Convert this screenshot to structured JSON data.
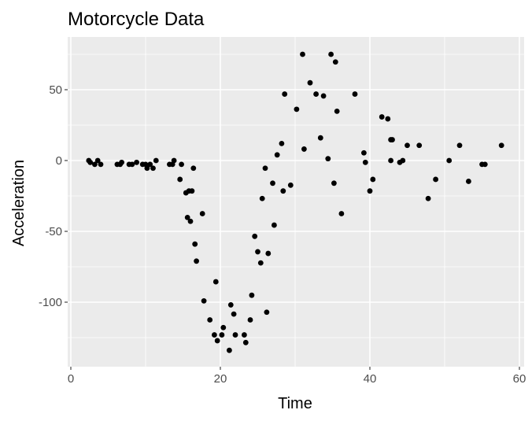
{
  "chart_data": {
    "type": "scatter",
    "title": "Motorcycle Data",
    "xlabel": "Time",
    "ylabel": "Acceleration",
    "xlim": [
      0,
      60
    ],
    "ylim": [
      -135,
      75
    ],
    "x_ticks": [
      0,
      20,
      40,
      60
    ],
    "y_ticks": [
      -100,
      -50,
      0,
      50
    ],
    "x_tick_labels": [
      "0",
      "20",
      "40",
      "60"
    ],
    "y_tick_labels": [
      "-100",
      "-50",
      "0",
      "50"
    ],
    "grid": true,
    "background": "#EBEBEB",
    "point_color": "#000000",
    "points": [
      {
        "x": 2.4,
        "y": 0.0
      },
      {
        "x": 2.6,
        "y": -1.3
      },
      {
        "x": 3.2,
        "y": -2.7
      },
      {
        "x": 3.6,
        "y": 0.0
      },
      {
        "x": 4.0,
        "y": -2.7
      },
      {
        "x": 6.2,
        "y": -2.7
      },
      {
        "x": 6.6,
        "y": -2.7
      },
      {
        "x": 6.8,
        "y": -1.3
      },
      {
        "x": 7.8,
        "y": -2.7
      },
      {
        "x": 8.2,
        "y": -2.7
      },
      {
        "x": 8.8,
        "y": -1.3
      },
      {
        "x": 9.6,
        "y": -2.7
      },
      {
        "x": 10.0,
        "y": -2.7
      },
      {
        "x": 10.2,
        "y": -5.4
      },
      {
        "x": 10.6,
        "y": -2.7
      },
      {
        "x": 11.0,
        "y": -5.4
      },
      {
        "x": 11.4,
        "y": 0.0
      },
      {
        "x": 13.2,
        "y": -2.7
      },
      {
        "x": 13.6,
        "y": -2.7
      },
      {
        "x": 13.8,
        "y": 0.0
      },
      {
        "x": 14.6,
        "y": -13.3
      },
      {
        "x": 14.8,
        "y": -2.7
      },
      {
        "x": 15.4,
        "y": -22.8
      },
      {
        "x": 15.6,
        "y": -40.2
      },
      {
        "x": 15.8,
        "y": -21.5
      },
      {
        "x": 16.0,
        "y": -42.9
      },
      {
        "x": 16.2,
        "y": -21.5
      },
      {
        "x": 16.4,
        "y": -5.4
      },
      {
        "x": 16.6,
        "y": -59.0
      },
      {
        "x": 16.8,
        "y": -71.0
      },
      {
        "x": 17.6,
        "y": -37.5
      },
      {
        "x": 17.8,
        "y": -99.1
      },
      {
        "x": 18.6,
        "y": -112.5
      },
      {
        "x": 19.2,
        "y": -123.1
      },
      {
        "x": 19.4,
        "y": -85.6
      },
      {
        "x": 19.6,
        "y": -127.2
      },
      {
        "x": 20.2,
        "y": -123.1
      },
      {
        "x": 20.4,
        "y": -117.9
      },
      {
        "x": 21.2,
        "y": -134.0
      },
      {
        "x": 21.4,
        "y": -101.9
      },
      {
        "x": 21.8,
        "y": -108.4
      },
      {
        "x": 22.0,
        "y": -123.1
      },
      {
        "x": 23.2,
        "y": -123.1
      },
      {
        "x": 23.4,
        "y": -128.5
      },
      {
        "x": 24.0,
        "y": -112.5
      },
      {
        "x": 24.2,
        "y": -95.1
      },
      {
        "x": 24.6,
        "y": -53.5
      },
      {
        "x": 25.0,
        "y": -64.4
      },
      {
        "x": 25.4,
        "y": -72.3
      },
      {
        "x": 25.6,
        "y": -26.8
      },
      {
        "x": 26.0,
        "y": -5.4
      },
      {
        "x": 26.2,
        "y": -107.1
      },
      {
        "x": 26.4,
        "y": -65.6
      },
      {
        "x": 27.0,
        "y": -16.0
      },
      {
        "x": 27.2,
        "y": -45.6
      },
      {
        "x": 27.6,
        "y": 4.0
      },
      {
        "x": 28.2,
        "y": 12.0
      },
      {
        "x": 28.4,
        "y": -21.5
      },
      {
        "x": 28.6,
        "y": 46.9
      },
      {
        "x": 29.4,
        "y": -17.4
      },
      {
        "x": 30.2,
        "y": 36.2
      },
      {
        "x": 31.0,
        "y": 75.0
      },
      {
        "x": 31.2,
        "y": 8.1
      },
      {
        "x": 32.0,
        "y": 54.9
      },
      {
        "x": 32.8,
        "y": 46.9
      },
      {
        "x": 33.4,
        "y": 16.0
      },
      {
        "x": 33.8,
        "y": 45.6
      },
      {
        "x": 34.4,
        "y": 1.3
      },
      {
        "x": 34.8,
        "y": 75.0
      },
      {
        "x": 35.2,
        "y": -16.0
      },
      {
        "x": 35.4,
        "y": 69.6
      },
      {
        "x": 35.6,
        "y": 34.8
      },
      {
        "x": 36.2,
        "y": -37.5
      },
      {
        "x": 38.0,
        "y": 46.9
      },
      {
        "x": 39.2,
        "y": 5.4
      },
      {
        "x": 39.4,
        "y": -1.3
      },
      {
        "x": 40.0,
        "y": -21.5
      },
      {
        "x": 40.4,
        "y": -13.3
      },
      {
        "x": 41.6,
        "y": 30.8
      },
      {
        "x": 42.4,
        "y": 29.4
      },
      {
        "x": 42.8,
        "y": 0.0
      },
      {
        "x": 42.8,
        "y": 14.7
      },
      {
        "x": 43.0,
        "y": 14.7
      },
      {
        "x": 44.0,
        "y": -1.3
      },
      {
        "x": 44.4,
        "y": 0.0
      },
      {
        "x": 45.0,
        "y": 10.7
      },
      {
        "x": 46.6,
        "y": 10.7
      },
      {
        "x": 47.8,
        "y": -26.8
      },
      {
        "x": 48.8,
        "y": -13.3
      },
      {
        "x": 50.6,
        "y": 0.0
      },
      {
        "x": 52.0,
        "y": 10.7
      },
      {
        "x": 53.2,
        "y": -14.7
      },
      {
        "x": 55.0,
        "y": -2.7
      },
      {
        "x": 55.4,
        "y": -2.7
      },
      {
        "x": 57.6,
        "y": 10.7
      }
    ]
  }
}
